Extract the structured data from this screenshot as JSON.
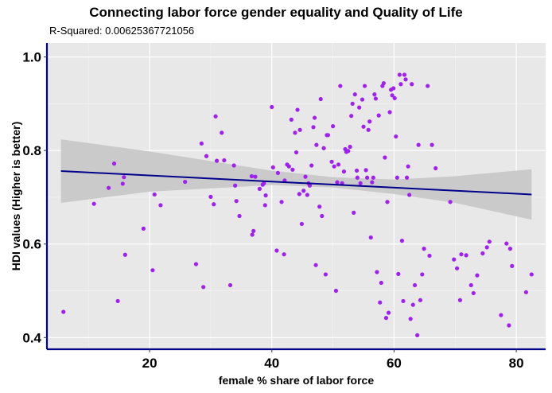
{
  "chart_data": {
    "type": "scatter",
    "title": "Connecting labor force gender equality and Quality of Life",
    "subtitle": "R-Squared:  0.00625367721056",
    "xlabel": "female % share of labor force",
    "ylabel": "HDI values (Higher is better)",
    "xlim": [
      3.2,
      84.8
    ],
    "ylim": [
      0.375,
      1.03
    ],
    "xticks": [
      20,
      40,
      60,
      80
    ],
    "yticks": [
      0.4,
      0.6,
      0.8,
      1.0
    ],
    "xtick_labels": [
      "20",
      "40",
      "60",
      "80"
    ],
    "ytick_labels": [
      "0.4",
      "0.6",
      "0.8",
      "1.0"
    ],
    "grid": true,
    "background": "#E8E8E8",
    "point_color": "#A020F0",
    "line_color": "#00008B",
    "band_color": "#C8C8C8",
    "axis_color": "#00008B",
    "fit_line": {
      "x": [
        5.5,
        82.5
      ],
      "y": [
        0.756,
        0.706
      ]
    },
    "confidence_band": {
      "x": [
        5.5,
        20,
        40,
        50,
        60,
        70,
        82.5
      ],
      "lower": [
        0.688,
        0.712,
        0.726,
        0.721,
        0.707,
        0.688,
        0.652
      ],
      "upper": [
        0.824,
        0.798,
        0.757,
        0.743,
        0.738,
        0.745,
        0.76
      ]
    },
    "points": [
      [
        5.9,
        0.455
      ],
      [
        10.9,
        0.686
      ],
      [
        13.3,
        0.72
      ],
      [
        14.2,
        0.772
      ],
      [
        14.8,
        0.478
      ],
      [
        15.6,
        0.729
      ],
      [
        15.8,
        0.743
      ],
      [
        16.0,
        0.577
      ],
      [
        19.0,
        0.633
      ],
      [
        20.5,
        0.544
      ],
      [
        20.8,
        0.706
      ],
      [
        21.8,
        0.683
      ],
      [
        25.8,
        0.733
      ],
      [
        27.6,
        0.557
      ],
      [
        28.5,
        0.815
      ],
      [
        28.8,
        0.508
      ],
      [
        29.3,
        0.788
      ],
      [
        30.0,
        0.701
      ],
      [
        30.5,
        0.685
      ],
      [
        30.8,
        0.873
      ],
      [
        31.0,
        0.778
      ],
      [
        31.8,
        0.838
      ],
      [
        32.2,
        0.779
      ],
      [
        33.2,
        0.512
      ],
      [
        33.8,
        0.768
      ],
      [
        34.0,
        0.725
      ],
      [
        34.2,
        0.692
      ],
      [
        34.7,
        0.66
      ],
      [
        36.7,
        0.745
      ],
      [
        36.8,
        0.62
      ],
      [
        37.0,
        0.628
      ],
      [
        37.3,
        0.744
      ],
      [
        38.0,
        0.718
      ],
      [
        38.5,
        0.727
      ],
      [
        38.7,
        0.73
      ],
      [
        38.9,
        0.683
      ],
      [
        39.0,
        0.704
      ],
      [
        40.0,
        0.893
      ],
      [
        40.2,
        0.764
      ],
      [
        40.8,
        0.586
      ],
      [
        41.0,
        0.752
      ],
      [
        41.6,
        0.69
      ],
      [
        42.0,
        0.578
      ],
      [
        42.1,
        0.736
      ],
      [
        42.5,
        0.77
      ],
      [
        42.8,
        0.766
      ],
      [
        43.2,
        0.866
      ],
      [
        43.4,
        0.759
      ],
      [
        43.8,
        0.838
      ],
      [
        44.0,
        0.796
      ],
      [
        44.2,
        0.887
      ],
      [
        44.5,
        0.707
      ],
      [
        44.6,
        0.844
      ],
      [
        44.9,
        0.643
      ],
      [
        45.2,
        0.714
      ],
      [
        45.5,
        0.744
      ],
      [
        45.8,
        0.705
      ],
      [
        46.0,
        0.73
      ],
      [
        46.2,
        0.725
      ],
      [
        46.5,
        0.768
      ],
      [
        46.8,
        0.85
      ],
      [
        47.0,
        0.87
      ],
      [
        47.2,
        0.555
      ],
      [
        47.3,
        0.812
      ],
      [
        47.8,
        0.68
      ],
      [
        48.0,
        0.91
      ],
      [
        48.2,
        0.66
      ],
      [
        48.5,
        0.805
      ],
      [
        48.8,
        0.535
      ],
      [
        49.0,
        0.833
      ],
      [
        49.2,
        0.833
      ],
      [
        49.8,
        0.776
      ],
      [
        50.0,
        0.852
      ],
      [
        50.2,
        0.766
      ],
      [
        50.5,
        0.5
      ],
      [
        50.7,
        0.732
      ],
      [
        50.9,
        0.77
      ],
      [
        51.2,
        0.938
      ],
      [
        51.5,
        0.73
      ],
      [
        51.8,
        0.755
      ],
      [
        52.0,
        0.803
      ],
      [
        52.2,
        0.797
      ],
      [
        52.5,
        0.799
      ],
      [
        52.8,
        0.808
      ],
      [
        53.0,
        0.874
      ],
      [
        53.2,
        0.9
      ],
      [
        53.4,
        0.667
      ],
      [
        53.6,
        0.92
      ],
      [
        53.9,
        0.757
      ],
      [
        54.0,
        0.742
      ],
      [
        54.3,
        0.892
      ],
      [
        54.5,
        0.73
      ],
      [
        54.8,
        0.909
      ],
      [
        55.0,
        0.851
      ],
      [
        55.2,
        0.938
      ],
      [
        55.4,
        0.758
      ],
      [
        55.6,
        0.742
      ],
      [
        55.8,
        0.844
      ],
      [
        56.0,
        0.862
      ],
      [
        56.2,
        0.614
      ],
      [
        56.4,
        0.732
      ],
      [
        56.6,
        0.742
      ],
      [
        56.8,
        0.92
      ],
      [
        57.0,
        0.911
      ],
      [
        57.2,
        0.54
      ],
      [
        57.5,
        0.875
      ],
      [
        57.7,
        0.475
      ],
      [
        57.9,
        0.517
      ],
      [
        58.1,
        0.938
      ],
      [
        58.3,
        0.944
      ],
      [
        58.5,
        0.785
      ],
      [
        58.7,
        0.442
      ],
      [
        58.9,
        0.69
      ],
      [
        59.1,
        0.453
      ],
      [
        59.3,
        0.882
      ],
      [
        59.5,
        0.93
      ],
      [
        59.7,
        0.918
      ],
      [
        59.9,
        0.933
      ],
      [
        60.1,
        0.912
      ],
      [
        60.3,
        0.83
      ],
      [
        60.5,
        0.742
      ],
      [
        60.7,
        0.536
      ],
      [
        60.9,
        0.962
      ],
      [
        61.1,
        0.942
      ],
      [
        61.3,
        0.607
      ],
      [
        61.5,
        0.478
      ],
      [
        61.7,
        0.962
      ],
      [
        61.9,
        0.952
      ],
      [
        62.1,
        0.742
      ],
      [
        62.3,
        0.766
      ],
      [
        62.5,
        0.705
      ],
      [
        62.7,
        0.44
      ],
      [
        62.9,
        0.942
      ],
      [
        63.1,
        0.47
      ],
      [
        63.4,
        0.512
      ],
      [
        63.8,
        0.405
      ],
      [
        64.0,
        0.812
      ],
      [
        64.3,
        0.48
      ],
      [
        64.6,
        0.535
      ],
      [
        64.9,
        0.59
      ],
      [
        65.5,
        0.938
      ],
      [
        65.8,
        0.575
      ],
      [
        66.2,
        0.812
      ],
      [
        66.8,
        0.762
      ],
      [
        69.2,
        0.69
      ],
      [
        69.8,
        0.567
      ],
      [
        70.3,
        0.548
      ],
      [
        70.8,
        0.48
      ],
      [
        71.0,
        0.578
      ],
      [
        71.8,
        0.576
      ],
      [
        72.6,
        0.512
      ],
      [
        73.0,
        0.495
      ],
      [
        73.6,
        0.533
      ],
      [
        74.5,
        0.58
      ],
      [
        75.2,
        0.593
      ],
      [
        75.6,
        0.605
      ],
      [
        77.5,
        0.448
      ],
      [
        78.4,
        0.601
      ],
      [
        78.8,
        0.426
      ],
      [
        79.0,
        0.59
      ],
      [
        79.3,
        0.553
      ],
      [
        81.6,
        0.497
      ],
      [
        82.5,
        0.535
      ]
    ]
  }
}
